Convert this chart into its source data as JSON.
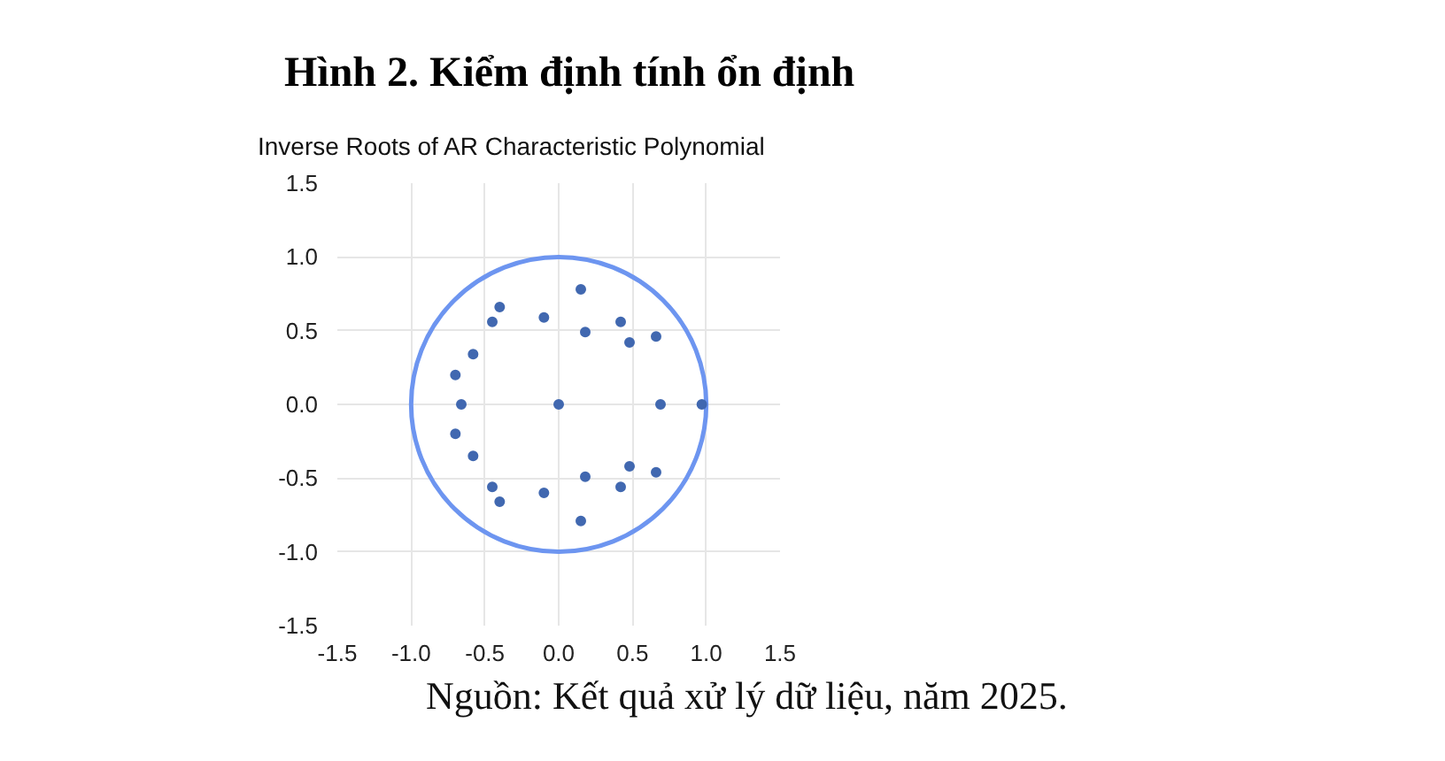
{
  "chart_data": {
    "type": "scatter",
    "title": "Hình 2. Kiểm định tính ổn định",
    "subtitle": "Inverse Roots of AR Characteristic Polynomial",
    "annotations": [
      "Nguồn: Kết quả xử lý dữ liệu, năm 2025."
    ],
    "xlim": [
      -1.5,
      1.5
    ],
    "ylim": [
      -1.5,
      1.5
    ],
    "xticks": [
      {
        "value": -1.5,
        "label": "-1.5"
      },
      {
        "value": -1,
        "label": "-1.0"
      },
      {
        "value": -0.5,
        "label": "-0.5"
      },
      {
        "value": 0,
        "label": "0.0"
      },
      {
        "value": 0.5,
        "label": "0.5"
      },
      {
        "value": 1,
        "label": "1.0"
      },
      {
        "value": 1.5,
        "label": "1.5"
      }
    ],
    "yticks": [
      {
        "value": -1.5,
        "label": "-1.5"
      },
      {
        "value": -1,
        "label": "-1.0"
      },
      {
        "value": -0.5,
        "label": "-0.5"
      },
      {
        "value": 0,
        "label": "0.0"
      },
      {
        "value": 0.5,
        "label": "0.5"
      },
      {
        "value": 1,
        "label": "1.0"
      },
      {
        "value": 1.5,
        "label": "1.5"
      }
    ],
    "grid": true,
    "marker": "circle",
    "series": [
      {
        "color": "#4168b0",
        "x": [
          0.15,
          -0.4,
          -0.45,
          -0.1,
          0.18,
          0.42,
          0.48,
          0.66,
          -0.58,
          -0.7,
          -0.66,
          0,
          0.69,
          0.97,
          -0.7,
          -0.58,
          -0.45,
          -0.4,
          -0.1,
          0.15,
          0.18,
          0.42,
          0.48,
          0.66
        ],
        "values": [
          0.78,
          0.66,
          0.56,
          0.59,
          0.49,
          0.56,
          0.42,
          0.46,
          0.34,
          0.2,
          0,
          0,
          0,
          0,
          -0.2,
          -0.35,
          -0.56,
          -0.66,
          -0.6,
          -0.79,
          -0.49,
          -0.56,
          -0.42,
          -0.46
        ]
      }
    ]
  }
}
